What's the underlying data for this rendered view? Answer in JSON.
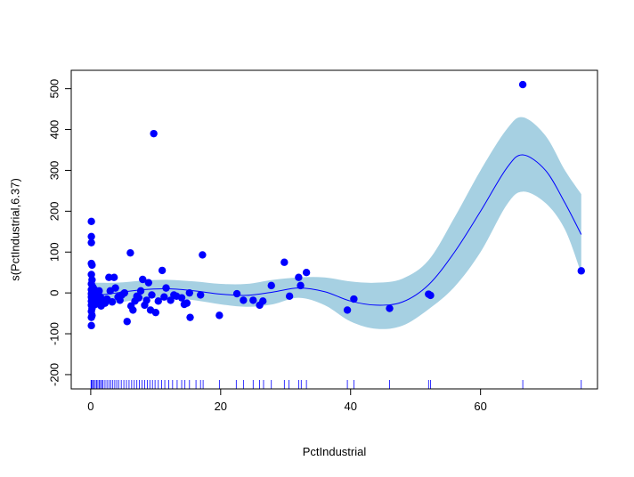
{
  "chart_data": {
    "type": "scatter",
    "title": "",
    "xlabel": "PctIndustrial",
    "ylabel": "s(PctIndustrial,6.37)",
    "xlim": [
      -3,
      78
    ],
    "ylim": [
      -235,
      545
    ],
    "x_ticks": [
      0,
      20,
      40,
      60
    ],
    "y_ticks": [
      -200,
      -100,
      0,
      100,
      200,
      300,
      400,
      500
    ],
    "grid": false,
    "legend": "none",
    "colors": {
      "points": "#0000ff",
      "fit_line": "#0000ff",
      "band": "#a6d0e2",
      "rug": "#0000ff",
      "axis": "#000000"
    },
    "fit": {
      "x": [
        0,
        4,
        8,
        12,
        16,
        20,
        24,
        28,
        32,
        36,
        40,
        44,
        48,
        52,
        56,
        60,
        64,
        66.5,
        70,
        73,
        75.5
      ],
      "y": [
        -8,
        0,
        8,
        10,
        5,
        -3,
        -6,
        2,
        12,
        3,
        -20,
        -30,
        -22,
        20,
        100,
        200,
        305,
        338,
        300,
        220,
        143
      ],
      "lower": [
        -40,
        -25,
        -15,
        -12,
        -18,
        -28,
        -34,
        -28,
        -12,
        -30,
        -70,
        -88,
        -80,
        -40,
        15,
        100,
        215,
        248,
        220,
        155,
        48
      ],
      "upper": [
        25,
        25,
        30,
        32,
        28,
        22,
        22,
        32,
        38,
        38,
        28,
        25,
        35,
        80,
        185,
        300,
        400,
        430,
        385,
        300,
        242
      ]
    },
    "points": [
      {
        "x": 0.1,
        "y": 175
      },
      {
        "x": 0.1,
        "y": 138
      },
      {
        "x": 0.1,
        "y": 123
      },
      {
        "x": 0.1,
        "y": 72
      },
      {
        "x": 0.2,
        "y": 68
      },
      {
        "x": 0.1,
        "y": 45
      },
      {
        "x": 0.2,
        "y": 32
      },
      {
        "x": 0.1,
        "y": 22
      },
      {
        "x": 0.3,
        "y": 15
      },
      {
        "x": 0.1,
        "y": 8
      },
      {
        "x": 0.2,
        "y": 3
      },
      {
        "x": 0.1,
        "y": -2
      },
      {
        "x": 0.3,
        "y": -6
      },
      {
        "x": 0.1,
        "y": -10
      },
      {
        "x": 0.2,
        "y": -15
      },
      {
        "x": 0.1,
        "y": -20
      },
      {
        "x": 0.3,
        "y": -25
      },
      {
        "x": 0.1,
        "y": -30
      },
      {
        "x": 0.2,
        "y": -38
      },
      {
        "x": 0.1,
        "y": -45
      },
      {
        "x": 0.2,
        "y": -55
      },
      {
        "x": 0.1,
        "y": -60
      },
      {
        "x": 0.1,
        "y": -80
      },
      {
        "x": 0.5,
        "y": 10
      },
      {
        "x": 0.6,
        "y": -5
      },
      {
        "x": 0.7,
        "y": -28
      },
      {
        "x": 0.8,
        "y": -15
      },
      {
        "x": 1.0,
        "y": 0
      },
      {
        "x": 1.1,
        "y": -20
      },
      {
        "x": 1.3,
        "y": 5
      },
      {
        "x": 1.5,
        "y": -10
      },
      {
        "x": 1.6,
        "y": -32
      },
      {
        "x": 1.8,
        "y": -18
      },
      {
        "x": 2.2,
        "y": -25
      },
      {
        "x": 2.5,
        "y": -15
      },
      {
        "x": 2.8,
        "y": 38
      },
      {
        "x": 3.0,
        "y": 5
      },
      {
        "x": 3.3,
        "y": -22
      },
      {
        "x": 3.6,
        "y": 38
      },
      {
        "x": 3.8,
        "y": 12
      },
      {
        "x": 4.2,
        "y": -10
      },
      {
        "x": 4.5,
        "y": -18
      },
      {
        "x": 4.8,
        "y": -5
      },
      {
        "x": 5.2,
        "y": 0
      },
      {
        "x": 5.6,
        "y": -70
      },
      {
        "x": 6.1,
        "y": 98
      },
      {
        "x": 6.2,
        "y": -32
      },
      {
        "x": 6.5,
        "y": -42
      },
      {
        "x": 6.8,
        "y": -20
      },
      {
        "x": 7.1,
        "y": -8
      },
      {
        "x": 7.4,
        "y": -12
      },
      {
        "x": 7.7,
        "y": 5
      },
      {
        "x": 8.0,
        "y": 33
      },
      {
        "x": 8.3,
        "y": -30
      },
      {
        "x": 8.6,
        "y": -18
      },
      {
        "x": 8.9,
        "y": 25
      },
      {
        "x": 9.2,
        "y": -42
      },
      {
        "x": 9.4,
        "y": -5
      },
      {
        "x": 9.7,
        "y": 390
      },
      {
        "x": 10.0,
        "y": -48
      },
      {
        "x": 10.4,
        "y": -20
      },
      {
        "x": 11.0,
        "y": 55
      },
      {
        "x": 11.3,
        "y": -10
      },
      {
        "x": 11.6,
        "y": 12
      },
      {
        "x": 12.3,
        "y": -18
      },
      {
        "x": 12.8,
        "y": -5
      },
      {
        "x": 13.2,
        "y": -8
      },
      {
        "x": 14.0,
        "y": -12
      },
      {
        "x": 14.4,
        "y": -28
      },
      {
        "x": 14.8,
        "y": -25
      },
      {
        "x": 15.2,
        "y": 0
      },
      {
        "x": 15.3,
        "y": -60
      },
      {
        "x": 16.9,
        "y": -5
      },
      {
        "x": 17.2,
        "y": 93
      },
      {
        "x": 19.8,
        "y": -55
      },
      {
        "x": 22.5,
        "y": -2
      },
      {
        "x": 23.5,
        "y": -18
      },
      {
        "x": 25.0,
        "y": -18
      },
      {
        "x": 26.0,
        "y": -30
      },
      {
        "x": 26.5,
        "y": -20
      },
      {
        "x": 27.8,
        "y": 18
      },
      {
        "x": 29.8,
        "y": 75
      },
      {
        "x": 30.6,
        "y": -8
      },
      {
        "x": 32.0,
        "y": 38
      },
      {
        "x": 32.3,
        "y": 18
      },
      {
        "x": 33.2,
        "y": 50
      },
      {
        "x": 39.5,
        "y": -42
      },
      {
        "x": 40.5,
        "y": -15
      },
      {
        "x": 46.0,
        "y": -38
      },
      {
        "x": 52.0,
        "y": -3
      },
      {
        "x": 52.3,
        "y": -6
      },
      {
        "x": 66.5,
        "y": 510
      },
      {
        "x": 75.5,
        "y": 54
      }
    ],
    "rug": [
      0.05,
      0.15,
      0.3,
      0.5,
      0.7,
      0.9,
      1.1,
      1.3,
      1.5,
      1.7,
      1.9,
      2.2,
      2.5,
      2.8,
      3.1,
      3.4,
      3.7,
      4.0,
      4.3,
      4.7,
      5.1,
      5.5,
      5.9,
      6.3,
      6.7,
      7.1,
      7.5,
      7.9,
      8.3,
      8.7,
      9.1,
      9.5,
      9.9,
      10.4,
      10.9,
      11.4,
      12.0,
      12.6,
      13.3,
      14.0,
      14.5,
      15.2,
      16.2,
      16.9,
      17.3,
      19.8,
      22.4,
      23.5,
      25.0,
      26.0,
      26.6,
      27.8,
      29.8,
      30.5,
      32.0,
      32.4,
      33.2,
      39.5,
      40.5,
      46.0,
      52.0,
      52.3,
      66.5,
      75.5
    ]
  }
}
